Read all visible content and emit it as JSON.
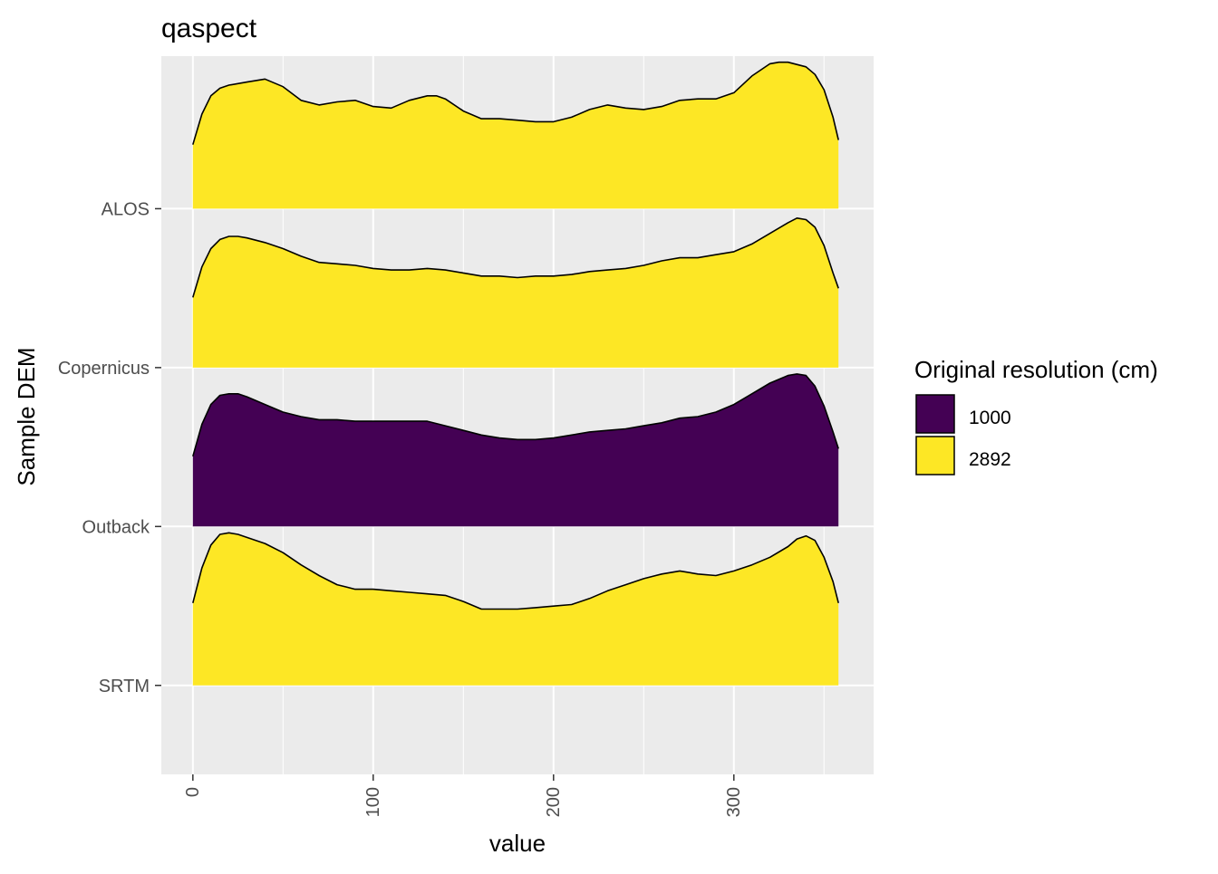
{
  "chart_data": {
    "type": "ridgeline",
    "title": "qaspect",
    "xlabel": "value",
    "ylabel": "Sample DEM",
    "xlim": [
      -17.5,
      377.5
    ],
    "x_ticks": [
      0,
      100,
      200,
      300
    ],
    "x_tick_labels": [
      "0",
      "100",
      "200",
      "300"
    ],
    "x_minor_ticks": [
      50,
      150,
      250,
      350
    ],
    "ylim": [
      0.44,
      4.96
    ],
    "grid": true,
    "legend": {
      "title": "Original resolution (cm)",
      "position": "right",
      "entries": [
        {
          "label": "1000",
          "color": "#440154"
        },
        {
          "label": "2892",
          "color": "#FDE725"
        }
      ]
    },
    "ridge_height_units": 0.96,
    "series": [
      {
        "name": "ALOS",
        "baseline": 4,
        "resolution": "2892",
        "color": "#FDE725",
        "x": [
          0,
          5,
          10,
          15,
          20,
          30,
          40,
          50,
          60,
          70,
          80,
          90,
          100,
          110,
          120,
          130,
          135,
          140,
          150,
          160,
          170,
          180,
          190,
          200,
          210,
          220,
          230,
          240,
          250,
          260,
          270,
          280,
          290,
          300,
          310,
          320,
          325,
          330,
          340,
          345,
          350,
          355,
          358
        ],
        "y": [
          0.42,
          0.62,
          0.74,
          0.79,
          0.81,
          0.83,
          0.85,
          0.8,
          0.71,
          0.68,
          0.7,
          0.71,
          0.67,
          0.66,
          0.71,
          0.74,
          0.74,
          0.72,
          0.64,
          0.59,
          0.59,
          0.58,
          0.57,
          0.57,
          0.6,
          0.65,
          0.68,
          0.66,
          0.65,
          0.67,
          0.71,
          0.72,
          0.72,
          0.76,
          0.87,
          0.95,
          0.96,
          0.96,
          0.93,
          0.88,
          0.78,
          0.6,
          0.45
        ]
      },
      {
        "name": "Copernicus",
        "baseline": 3,
        "resolution": "2892",
        "color": "#FDE725",
        "x": [
          0,
          5,
          10,
          15,
          20,
          25,
          30,
          40,
          50,
          60,
          70,
          80,
          90,
          100,
          110,
          120,
          130,
          140,
          150,
          160,
          170,
          180,
          190,
          200,
          210,
          220,
          230,
          240,
          250,
          260,
          270,
          280,
          290,
          300,
          310,
          320,
          330,
          335,
          340,
          345,
          350,
          355,
          358
        ],
        "y": [
          0.46,
          0.66,
          0.78,
          0.84,
          0.86,
          0.86,
          0.85,
          0.82,
          0.78,
          0.73,
          0.69,
          0.68,
          0.67,
          0.65,
          0.64,
          0.64,
          0.65,
          0.64,
          0.62,
          0.6,
          0.6,
          0.59,
          0.6,
          0.6,
          0.61,
          0.63,
          0.64,
          0.65,
          0.67,
          0.7,
          0.72,
          0.72,
          0.74,
          0.76,
          0.81,
          0.88,
          0.95,
          0.98,
          0.97,
          0.92,
          0.8,
          0.62,
          0.52
        ]
      },
      {
        "name": "Outback",
        "baseline": 2,
        "resolution": "1000",
        "color": "#440154",
        "x": [
          0,
          5,
          10,
          15,
          20,
          25,
          30,
          40,
          50,
          60,
          70,
          80,
          90,
          100,
          110,
          120,
          130,
          140,
          150,
          160,
          170,
          180,
          190,
          200,
          210,
          220,
          230,
          240,
          250,
          260,
          270,
          280,
          290,
          300,
          310,
          320,
          330,
          335,
          340,
          345,
          350,
          355,
          358
        ],
        "y": [
          0.46,
          0.67,
          0.8,
          0.86,
          0.87,
          0.87,
          0.85,
          0.8,
          0.75,
          0.72,
          0.7,
          0.7,
          0.69,
          0.69,
          0.69,
          0.69,
          0.69,
          0.66,
          0.63,
          0.6,
          0.58,
          0.57,
          0.57,
          0.58,
          0.6,
          0.62,
          0.63,
          0.64,
          0.66,
          0.68,
          0.71,
          0.72,
          0.75,
          0.8,
          0.87,
          0.94,
          0.99,
          1.0,
          0.99,
          0.92,
          0.79,
          0.62,
          0.51
        ]
      },
      {
        "name": "SRTM",
        "baseline": 1,
        "resolution": "2892",
        "color": "#FDE725",
        "x": [
          0,
          5,
          10,
          15,
          20,
          25,
          30,
          40,
          50,
          60,
          70,
          80,
          90,
          100,
          110,
          120,
          130,
          140,
          150,
          160,
          170,
          180,
          190,
          200,
          210,
          220,
          230,
          240,
          250,
          260,
          270,
          280,
          290,
          300,
          310,
          320,
          330,
          335,
          340,
          345,
          350,
          355,
          358
        ],
        "y": [
          0.54,
          0.77,
          0.92,
          0.99,
          1.0,
          0.99,
          0.97,
          0.93,
          0.87,
          0.79,
          0.72,
          0.66,
          0.63,
          0.63,
          0.62,
          0.61,
          0.6,
          0.59,
          0.55,
          0.5,
          0.5,
          0.5,
          0.51,
          0.52,
          0.53,
          0.57,
          0.62,
          0.66,
          0.7,
          0.73,
          0.75,
          0.73,
          0.72,
          0.75,
          0.79,
          0.84,
          0.91,
          0.96,
          0.98,
          0.95,
          0.84,
          0.68,
          0.54
        ]
      }
    ]
  }
}
